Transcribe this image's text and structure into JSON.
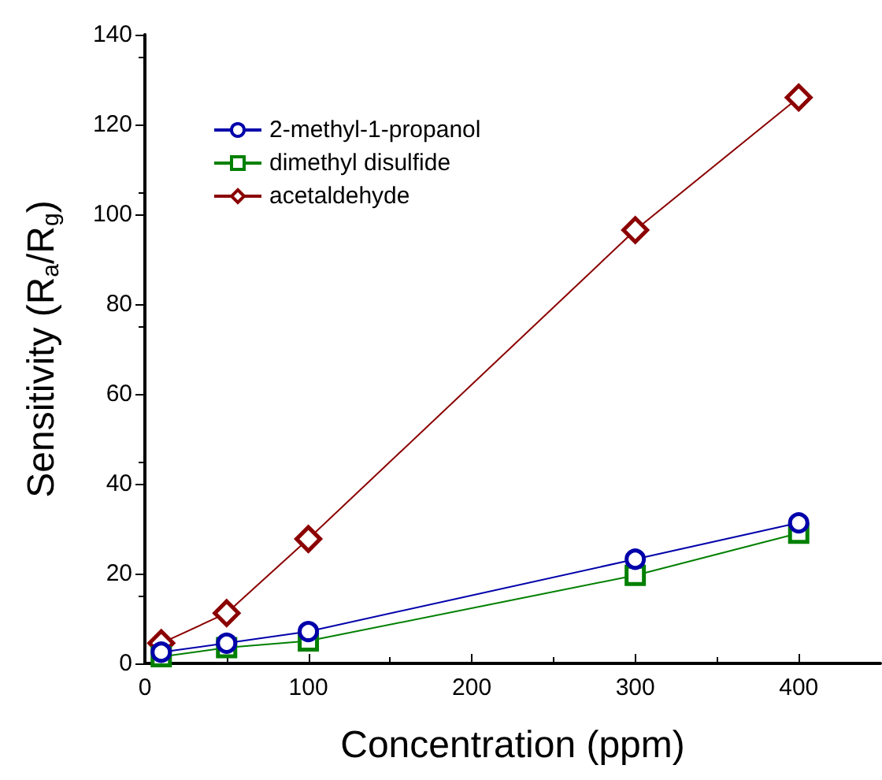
{
  "chart_data": {
    "type": "line",
    "xlabel": "Concentration (ppm)",
    "ylabel": "Sensitivity (R$_{a}$/R$_{g}$)",
    "x": [
      10,
      50,
      100,
      300,
      400
    ],
    "series": [
      {
        "name": "2-methyl-1-propanol",
        "color": "#0000aa",
        "marker": "circle",
        "values": [
          2.5,
          4.5,
          7.1,
          23.2,
          31.3
        ]
      },
      {
        "name": "dimethyl disulfide",
        "color": "#008000",
        "marker": "square",
        "values": [
          1.5,
          3.5,
          5,
          19.6,
          29
        ]
      },
      {
        "name": "acetaldehyde",
        "color": "#8b0000",
        "marker": "diamond",
        "values": [
          4.5,
          11.2,
          27.7,
          96.5,
          126
        ]
      }
    ],
    "xlim": [
      0,
      450
    ],
    "xticks": [
      0,
      100,
      200,
      300,
      400
    ],
    "ylim": [
      0,
      140
    ],
    "yticks": [
      0,
      20,
      40,
      60,
      80,
      100,
      120,
      140
    ],
    "grid": false,
    "legend": "top left",
    "line_style": "solid"
  }
}
